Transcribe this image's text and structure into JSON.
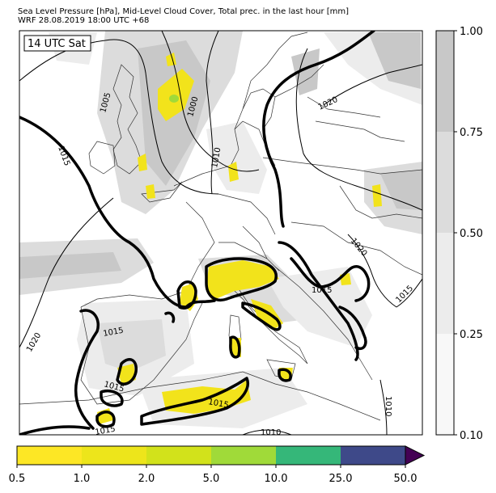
{
  "header": {
    "line1": "Sea Level Pressure [hPa], Mid-Level Cloud Cover, Total prec. in the last hour [mm]",
    "line2": "WRF 28.08.2019 18:00 UTC +68"
  },
  "map_label": "14 UTC Sat",
  "isobar_labels": [
    "1005",
    "1000",
    "1015",
    "1010",
    "1020",
    "1020",
    "1015",
    "1015",
    "1020",
    "1015",
    "1015",
    "1015",
    "1015",
    "1010",
    "1010"
  ],
  "cloud_colorbar": {
    "ticks": [
      "1.00",
      "0.75",
      "0.50",
      "0.25",
      "0.10"
    ],
    "colors": [
      "#c8c8c8",
      "#dcdcdc",
      "#ececec",
      "#f8f8f8"
    ]
  },
  "precip_colorbar": {
    "ticks": [
      "0.5",
      "1.0",
      "2.0",
      "5.0",
      "10.0",
      "25.0",
      "50.0"
    ],
    "colors": [
      "#fde725",
      "#ede51b",
      "#d2e21b",
      "#a0da39",
      "#35b779",
      "#31688e",
      "#3e4989"
    ],
    "extend_color": "#440154"
  },
  "colors": {
    "coast": "#333333",
    "isobar": "#000000",
    "thick_isobar": "#000000",
    "rain": "#f2e31b"
  }
}
